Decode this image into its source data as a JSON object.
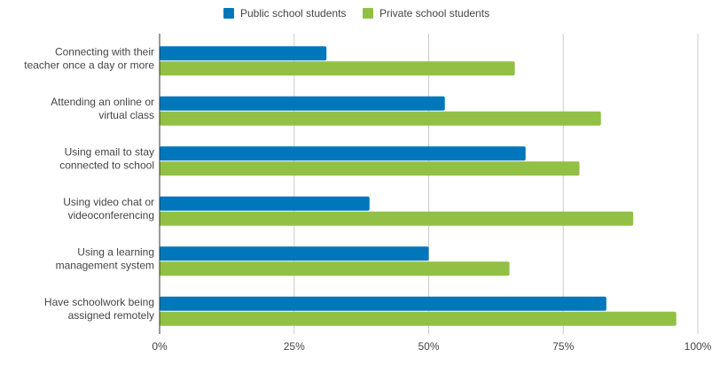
{
  "chart_data": {
    "type": "bar",
    "orientation": "horizontal",
    "title": "",
    "xlabel": "",
    "ylabel": "",
    "categories": [
      [
        "Connecting with their",
        "teacher once a day or more"
      ],
      [
        "Attending an online or",
        "virtual class"
      ],
      [
        "Using email to stay",
        "connected to school"
      ],
      [
        "Using video chat or",
        "videoconferencing"
      ],
      [
        "Using a learning",
        "management system"
      ],
      [
        "Have schoolwork being",
        "assigned remotely"
      ]
    ],
    "series": [
      {
        "name": "Public school students",
        "color": "#0077BA",
        "values": [
          31,
          53,
          68,
          39,
          50,
          83
        ]
      },
      {
        "name": "Private school students",
        "color": "#92C045",
        "values": [
          66,
          82,
          78,
          88,
          65,
          96
        ]
      }
    ],
    "xlim": [
      0,
      100
    ],
    "xticks": [
      0,
      25,
      50,
      75,
      100
    ],
    "xtick_labels": [
      "0%",
      "25%",
      "50%",
      "75%",
      "100%"
    ],
    "unit": "%",
    "grid": true,
    "legend": "top-center"
  }
}
